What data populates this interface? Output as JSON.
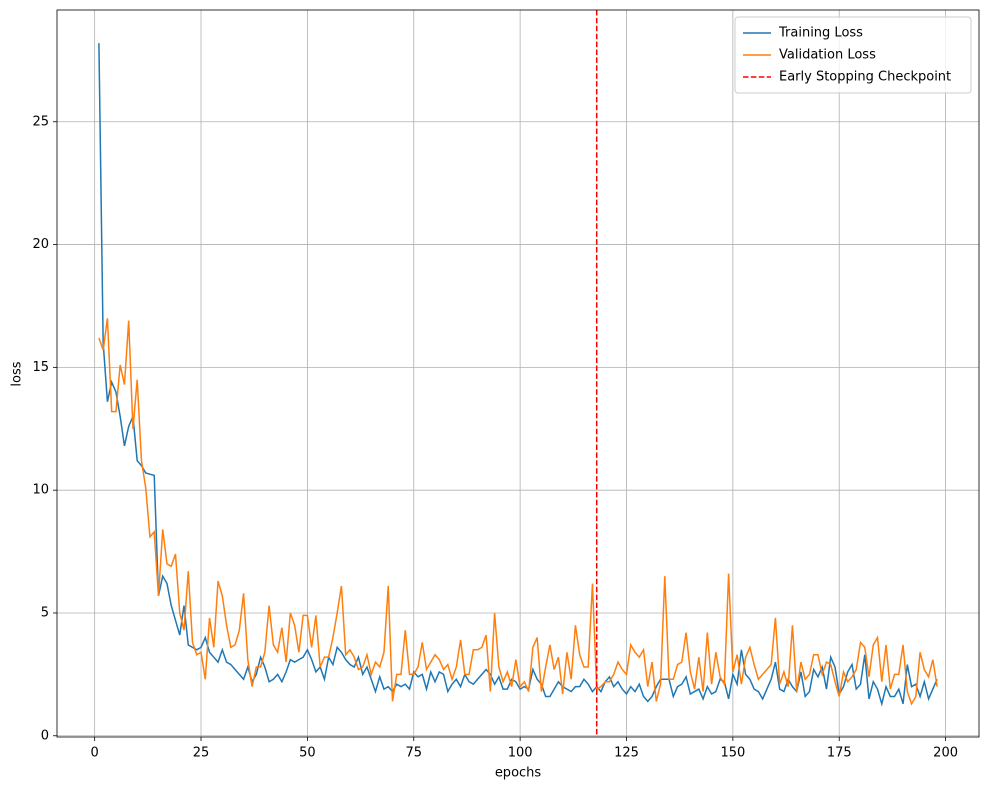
{
  "chart_data": {
    "type": "line",
    "x_label": "epochs",
    "y_label": "loss",
    "xlim": [
      -8.85,
      207.85
    ],
    "ylim": [
      -0.05,
      29.55
    ],
    "xticks": [
      0,
      25,
      50,
      75,
      100,
      125,
      150,
      175,
      200
    ],
    "yticks": [
      0,
      5,
      10,
      15,
      20,
      25
    ],
    "grid": true,
    "legend": "upper right",
    "x": [
      1,
      2,
      3,
      4,
      5,
      6,
      7,
      8,
      9,
      10,
      11,
      12,
      13,
      14,
      15,
      16,
      17,
      18,
      19,
      20,
      21,
      22,
      23,
      24,
      25,
      26,
      27,
      28,
      29,
      30,
      31,
      32,
      33,
      34,
      35,
      36,
      37,
      38,
      39,
      40,
      41,
      42,
      43,
      44,
      45,
      46,
      47,
      48,
      49,
      50,
      51,
      52,
      53,
      54,
      55,
      56,
      57,
      58,
      59,
      60,
      61,
      62,
      63,
      64,
      65,
      66,
      67,
      68,
      69,
      70,
      71,
      72,
      73,
      74,
      75,
      76,
      77,
      78,
      79,
      80,
      81,
      82,
      83,
      84,
      85,
      86,
      87,
      88,
      89,
      90,
      91,
      92,
      93,
      94,
      95,
      96,
      97,
      98,
      99,
      100,
      101,
      102,
      103,
      104,
      105,
      106,
      107,
      108,
      109,
      110,
      111,
      112,
      113,
      114,
      115,
      116,
      117,
      118,
      119,
      120,
      121,
      122,
      123,
      124,
      125,
      126,
      127,
      128,
      129,
      130,
      131,
      132,
      133,
      134,
      135,
      136,
      137,
      138,
      139,
      140,
      141,
      142,
      143,
      144,
      145,
      146,
      147,
      148,
      149,
      150,
      151,
      152,
      153,
      154,
      155,
      156,
      157,
      158,
      159,
      160,
      161,
      162,
      163,
      164,
      165,
      166,
      167,
      168,
      169,
      170,
      171,
      172,
      173,
      174,
      175,
      176,
      177,
      178,
      179,
      180,
      181,
      182,
      183,
      184,
      185,
      186,
      187,
      188,
      189,
      190,
      191,
      192,
      193,
      194,
      195,
      196,
      197,
      198
    ],
    "series": [
      {
        "name": "Training Loss",
        "color": "#1f77b4",
        "values": [
          28.2,
          16.0,
          13.6,
          14.4,
          14.0,
          13.0,
          11.8,
          12.6,
          13.0,
          11.2,
          11.0,
          10.7,
          10.65,
          10.6,
          5.7,
          6.5,
          6.2,
          5.3,
          4.7,
          4.1,
          5.3,
          3.7,
          3.6,
          3.5,
          3.6,
          4.0,
          3.4,
          3.2,
          3.0,
          3.5,
          3.0,
          2.9,
          2.7,
          2.5,
          2.3,
          2.8,
          2.2,
          2.5,
          3.2,
          2.8,
          2.2,
          2.3,
          2.5,
          2.2,
          2.6,
          3.1,
          3.0,
          3.1,
          3.2,
          3.5,
          3.1,
          2.6,
          2.8,
          2.3,
          3.2,
          2.9,
          3.6,
          3.4,
          3.1,
          2.9,
          2.8,
          3.2,
          2.5,
          2.8,
          2.3,
          1.8,
          2.4,
          1.9,
          2.0,
          1.8,
          2.1,
          2.0,
          2.1,
          1.9,
          2.6,
          2.4,
          2.5,
          1.9,
          2.6,
          2.2,
          2.6,
          2.5,
          1.8,
          2.1,
          2.3,
          2.0,
          2.5,
          2.2,
          2.1,
          2.3,
          2.5,
          2.7,
          2.5,
          2.1,
          2.4,
          1.9,
          1.9,
          2.3,
          2.2,
          1.9,
          2.0,
          1.9,
          2.7,
          2.3,
          2.1,
          1.6,
          1.6,
          1.9,
          2.2,
          2.0,
          1.9,
          1.8,
          2.0,
          2.0,
          2.3,
          2.1,
          1.8,
          2.0,
          1.8,
          2.2,
          2.4,
          2.0,
          2.2,
          1.9,
          1.7,
          2.0,
          1.8,
          2.1,
          1.6,
          1.4,
          1.6,
          2.0,
          2.3,
          2.3,
          2.3,
          1.6,
          2.0,
          2.1,
          2.4,
          1.7,
          1.8,
          1.9,
          1.5,
          2.0,
          1.7,
          1.8,
          2.3,
          2.2,
          1.5,
          2.5,
          2.1,
          3.5,
          2.5,
          2.3,
          1.9,
          1.8,
          1.5,
          1.9,
          2.3,
          3.0,
          1.9,
          1.8,
          2.3,
          2.0,
          1.8,
          2.6,
          1.6,
          1.8,
          2.7,
          2.4,
          2.8,
          1.9,
          3.2,
          2.8,
          1.7,
          2.0,
          2.6,
          2.9,
          1.9,
          2.1,
          3.3,
          1.5,
          2.2,
          1.9,
          1.3,
          2.0,
          1.6,
          1.6,
          1.9,
          1.3,
          2.9,
          2.0,
          2.1,
          1.6,
          2.2,
          1.5,
          1.9,
          2.3
        ]
      },
      {
        "name": "Validation Loss",
        "color": "#ff7f0e",
        "values": [
          16.2,
          15.7,
          17.0,
          13.2,
          13.2,
          15.1,
          14.3,
          16.9,
          12.5,
          14.5,
          11.2,
          10.1,
          8.1,
          8.3,
          5.7,
          8.4,
          7.0,
          6.9,
          7.4,
          5.0,
          4.3,
          6.7,
          3.8,
          3.3,
          3.4,
          2.3,
          4.8,
          3.6,
          6.3,
          5.7,
          4.5,
          3.6,
          3.7,
          4.3,
          5.8,
          3.1,
          2.0,
          2.8,
          2.8,
          3.4,
          5.3,
          3.7,
          3.4,
          4.4,
          3.0,
          5.0,
          4.5,
          3.4,
          4.9,
          4.9,
          3.6,
          4.9,
          2.8,
          3.2,
          3.2,
          4.0,
          5.0,
          6.1,
          3.3,
          3.5,
          3.2,
          2.7,
          2.8,
          3.3,
          2.5,
          3.0,
          2.8,
          3.4,
          6.1,
          1.4,
          2.5,
          2.5,
          4.3,
          2.5,
          2.5,
          2.8,
          3.8,
          2.7,
          3.0,
          3.3,
          3.1,
          2.7,
          2.9,
          2.3,
          2.8,
          3.9,
          2.5,
          2.5,
          3.5,
          3.5,
          3.6,
          4.1,
          1.8,
          5.0,
          2.8,
          2.2,
          2.6,
          2.0,
          3.1,
          2.0,
          2.2,
          1.8,
          3.6,
          4.0,
          1.8,
          2.8,
          3.7,
          2.7,
          3.2,
          1.7,
          3.4,
          2.3,
          4.5,
          3.3,
          2.8,
          2.8,
          6.2,
          1.9,
          2.0,
          2.2,
          2.2,
          2.5,
          3.0,
          2.7,
          2.5,
          3.7,
          3.4,
          3.2,
          3.5,
          2.0,
          3.0,
          1.4,
          2.1,
          6.5,
          2.3,
          2.3,
          2.9,
          3.0,
          4.2,
          2.6,
          1.9,
          3.2,
          1.8,
          4.2,
          2.1,
          3.4,
          2.4,
          2.1,
          6.6,
          2.6,
          3.3,
          2.1,
          3.2,
          3.6,
          2.9,
          2.3,
          2.5,
          2.7,
          2.9,
          4.8,
          2.1,
          2.6,
          2.0,
          4.5,
          1.8,
          3.0,
          2.3,
          2.5,
          3.3,
          3.3,
          2.5,
          3.0,
          2.9,
          2.2,
          1.6,
          2.6,
          2.2,
          2.4,
          2.7,
          3.8,
          3.6,
          2.4,
          3.7,
          4.0,
          2.2,
          3.7,
          1.9,
          2.5,
          2.5,
          3.7,
          1.8,
          1.3,
          1.6,
          3.4,
          2.7,
          2.4,
          3.1,
          2.0
        ]
      }
    ],
    "vlines": [
      {
        "name": "Early Stopping Checkpoint",
        "x": 118,
        "color": "#ff0000"
      }
    ]
  }
}
